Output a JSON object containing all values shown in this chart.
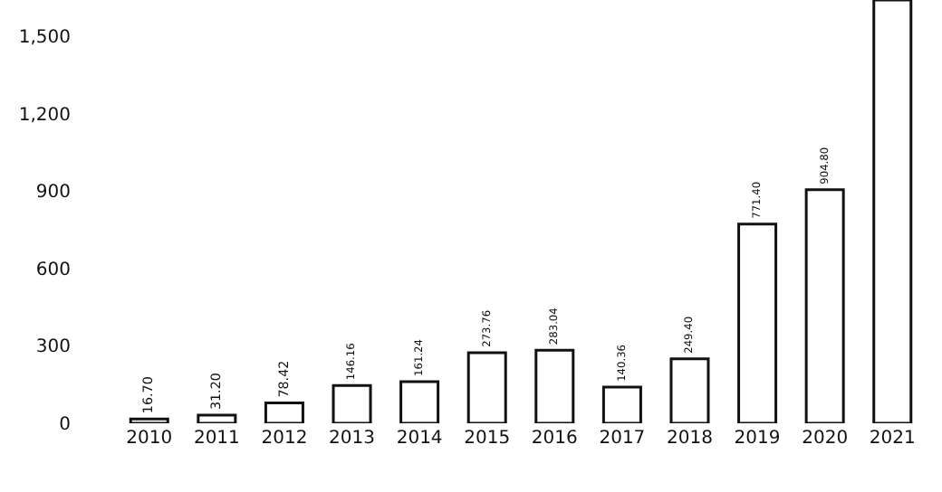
{
  "chart_data": {
    "type": "bar",
    "categories": [
      "2010",
      "2011",
      "2012",
      "2013",
      "2014",
      "2015",
      "2016",
      "2017",
      "2018",
      "2019",
      "2020",
      "2021"
    ],
    "values": [
      16.7,
      31.2,
      78.42,
      146.16,
      161.24,
      273.76,
      283.04,
      140.36,
      249.4,
      771.4,
      904.8,
      1640
    ],
    "value_labels": [
      "16.70",
      "31.20",
      "78.42",
      "146.16",
      "161.24",
      "273.76",
      "283.04",
      "140.36",
      "249.40",
      "771.40",
      "904.80",
      null
    ],
    "color": "#ffffff",
    "ylim": [
      0,
      1640
    ],
    "yticks": [
      0,
      {
        "value": 300,
        "label": "300"
      },
      {
        "value": 600,
        "label": "600"
      },
      {
        "value": 900,
        "label": "900"
      },
      {
        "value": 1200,
        "label": "1,200"
      },
      {
        "value": 1500,
        "label": "1,500"
      }
    ],
    "legend": false
  }
}
